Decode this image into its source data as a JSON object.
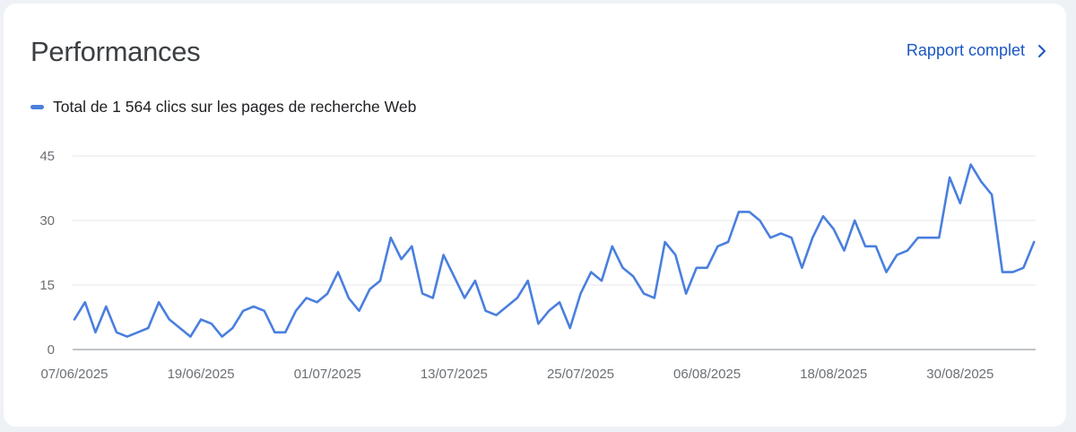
{
  "header": {
    "title": "Performances",
    "report_link": "Rapport complet"
  },
  "icons": {
    "report_chevron": "chevron-right-icon"
  },
  "colors": {
    "series": "#4a7fde",
    "link": "#1a56c4",
    "grid": "#e6e7ea",
    "axis": "#9aa0a6"
  },
  "chart_data": {
    "type": "line",
    "legend_position": "top-left",
    "grid": true,
    "ylim": [
      0,
      45
    ],
    "y_ticks": [
      "0",
      "15",
      "30",
      "45"
    ],
    "x_tick_labels": [
      "07/06/2025",
      "19/06/2025",
      "01/07/2025",
      "13/07/2025",
      "25/07/2025",
      "06/08/2025",
      "18/08/2025",
      "30/08/2025"
    ],
    "x_start": "07/06/2025",
    "x_end": "05/09/2025",
    "series": [
      {
        "name": "Total de 1 564 clics sur les pages de recherche Web",
        "color": "#4a7fde",
        "values": [
          7,
          11,
          4,
          10,
          4,
          3,
          4,
          5,
          11,
          7,
          5,
          3,
          7,
          6,
          3,
          5,
          9,
          10,
          9,
          4,
          4,
          9,
          12,
          11,
          13,
          18,
          12,
          9,
          14,
          16,
          26,
          21,
          24,
          13,
          12,
          22,
          17,
          12,
          16,
          9,
          8,
          10,
          12,
          16,
          6,
          9,
          11,
          5,
          13,
          18,
          16,
          24,
          19,
          17,
          13,
          12,
          25,
          22,
          13,
          19,
          19,
          24,
          25,
          32,
          32,
          30,
          26,
          27,
          26,
          19,
          26,
          31,
          28,
          23,
          30,
          24,
          24,
          18,
          22,
          23,
          26,
          26,
          26,
          40,
          34,
          43,
          39,
          36,
          18,
          18,
          19,
          25
        ]
      }
    ]
  }
}
